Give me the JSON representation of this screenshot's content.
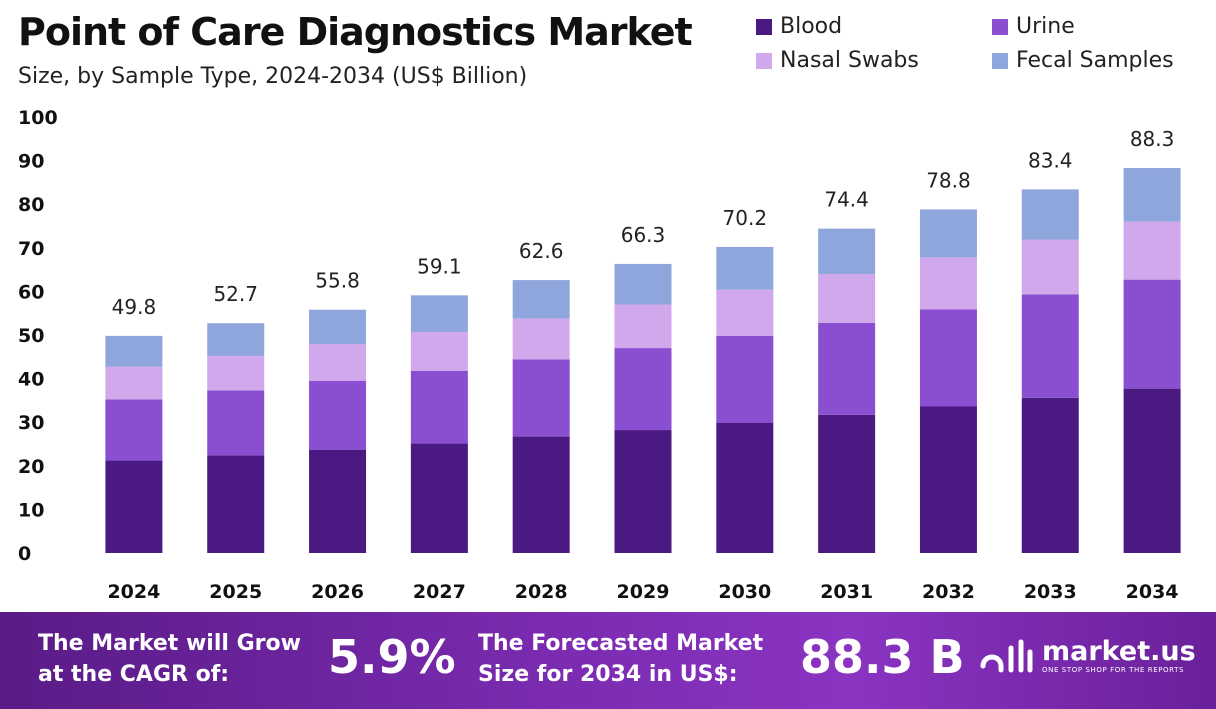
{
  "header": {
    "title": "Point of Care Diagnostics Market",
    "subtitle": "Size, by Sample Type, 2024-2034 (US$ Billion)"
  },
  "legend": [
    {
      "label": "Blood",
      "color": "#4a1a82"
    },
    {
      "label": "Urine",
      "color": "#8a4fd0"
    },
    {
      "label": "Nasal Swabs",
      "color": "#d2a8ec"
    },
    {
      "label": "Fecal Samples",
      "color": "#8fa6dc"
    }
  ],
  "chart_data": {
    "type": "bar",
    "stacked": true,
    "categories": [
      "2024",
      "2025",
      "2026",
      "2027",
      "2028",
      "2029",
      "2030",
      "2031",
      "2032",
      "2033",
      "2034"
    ],
    "series": [
      {
        "name": "Blood",
        "color": "#4a1a82",
        "values": [
          21.2,
          22.4,
          23.7,
          25.1,
          26.7,
          28.2,
          29.9,
          31.7,
          33.6,
          35.6,
          37.7
        ]
      },
      {
        "name": "Urine",
        "color": "#8a4fd0",
        "values": [
          14.0,
          14.9,
          15.8,
          16.7,
          17.7,
          18.8,
          19.9,
          21.1,
          22.3,
          23.7,
          25.0
        ]
      },
      {
        "name": "Nasal Swabs",
        "color": "#d2a8ec",
        "values": [
          7.5,
          7.9,
          8.4,
          8.9,
          9.4,
          10.0,
          10.6,
          11.2,
          11.9,
          12.6,
          13.3
        ]
      },
      {
        "name": "Fecal Samples",
        "color": "#8fa6dc",
        "values": [
          7.1,
          7.5,
          7.9,
          8.4,
          8.8,
          9.3,
          9.8,
          10.4,
          11.0,
          11.5,
          12.3
        ]
      }
    ],
    "totals": [
      49.8,
      52.7,
      55.8,
      59.1,
      62.6,
      66.3,
      70.2,
      74.4,
      78.8,
      83.4,
      88.3
    ],
    "ylim": [
      0,
      100
    ],
    "yticks": [
      0,
      10,
      20,
      30,
      40,
      50,
      60,
      70,
      80,
      90,
      100
    ],
    "grid": false,
    "legend_position": "top-right"
  },
  "banner": {
    "cagr_text_1": "The Market will Grow",
    "cagr_text_2": "at the CAGR of:",
    "cagr_value": "5.9%",
    "forecast_text_1": "The Forecasted Market",
    "forecast_text_2": "Size for 2034 in US$:",
    "forecast_value": "88.3 B",
    "logo_name": "market.us",
    "logo_tagline": "ONE STOP SHOP FOR THE REPORTS"
  }
}
